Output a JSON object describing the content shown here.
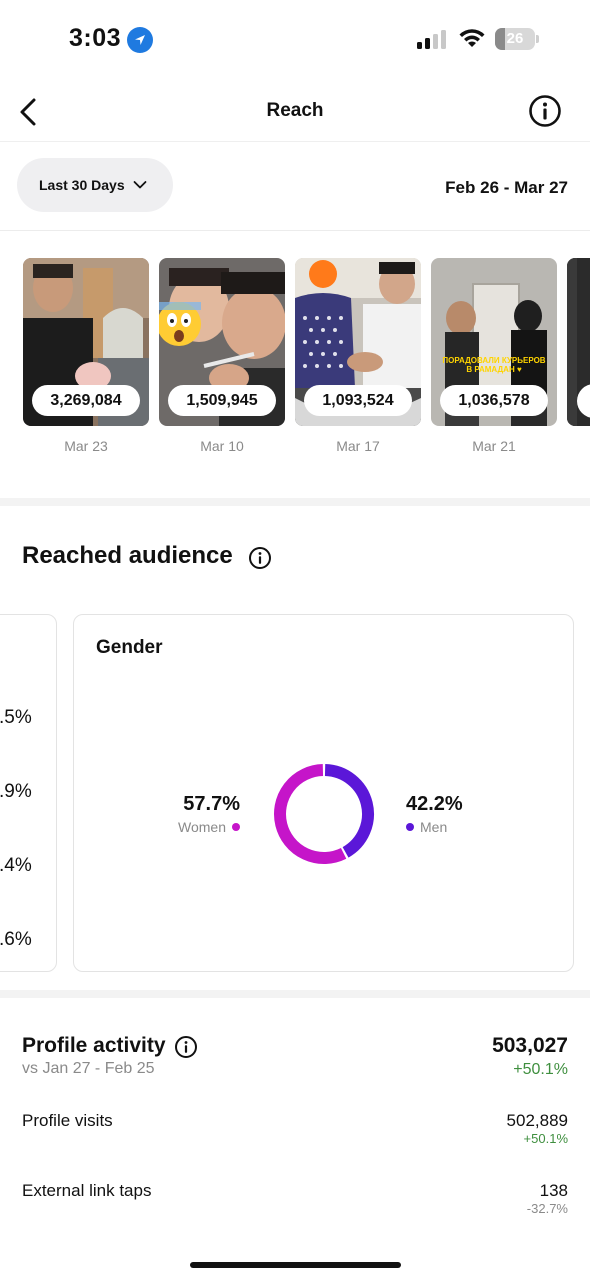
{
  "status_bar": {
    "time": "3:03",
    "battery": "26",
    "battery_level": 0.26
  },
  "header": {
    "title": "Reach"
  },
  "filter": {
    "label": "Last 30 Days",
    "date_range": "Feb 26 - Mar 27"
  },
  "thumbnails": [
    {
      "count": "3,269,084",
      "date": "Mar 23"
    },
    {
      "count": "1,509,945",
      "date": "Mar 10"
    },
    {
      "count": "1,093,524",
      "date": "Mar 17"
    },
    {
      "count": "1,036,578",
      "date": "Mar 21",
      "caption": "ПОРАДОВАЛИ КУРЬЕРОВ В РАМАДАН ♥"
    }
  ],
  "audience": {
    "title": "Reached audience",
    "left_card_values": [
      ".5%",
      ".9%",
      ".4%",
      ".6%"
    ],
    "gender": {
      "title": "Gender",
      "women_pct": "57.7%",
      "women_label": "Women",
      "men_pct": "42.2%",
      "men_label": "Men",
      "women_value": 57.7,
      "men_value": 42.2,
      "women_color": "#c515c9",
      "men_color": "#5b17d8"
    }
  },
  "profile_activity": {
    "title": "Profile activity",
    "subtitle": "vs Jan 27 - Feb 25",
    "total": "503,027",
    "total_change": "+50.1%",
    "rows": [
      {
        "label": "Profile visits",
        "value": "502,889",
        "change": "+50.1%"
      },
      {
        "label": "External link taps",
        "value": "138",
        "change": "-32.7%"
      }
    ]
  }
}
